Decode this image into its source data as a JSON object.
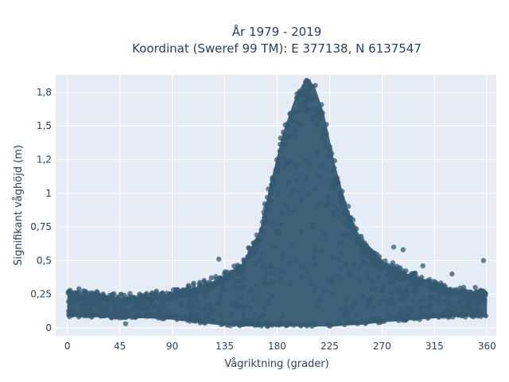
{
  "chart_data": {
    "type": "scatter",
    "title": "År 1979 - 2019",
    "subtitle": "Koordinat (Sweref 99 TM): E 377138, N 6137547",
    "xlabel": "Vågriktning (grader)",
    "ylabel": "Signifikant våghöjd (m)",
    "xlim": [
      -10,
      368
    ],
    "ylim": [
      -0.06,
      1.88
    ],
    "x_ticks": [
      0,
      45,
      90,
      135,
      180,
      225,
      270,
      315,
      360
    ],
    "x_tick_labels": [
      "0",
      "45",
      "90",
      "135",
      "180",
      "225",
      "270",
      "315",
      "360"
    ],
    "y_ticks": [
      0,
      0.25,
      0.5,
      0.75,
      1,
      1.25,
      1.5,
      1.75
    ],
    "y_tick_labels": [
      "0",
      "0,25",
      "0,5",
      "0,75",
      "1",
      "1,2",
      "1,5",
      "1,8"
    ],
    "grid": true,
    "marker_color": "#345a70",
    "plot_background": "#e5ecf6",
    "envelope": {
      "x": [
        0,
        20,
        45,
        70,
        90,
        110,
        130,
        150,
        165,
        175,
        185,
        195,
        205,
        212,
        220,
        230,
        240,
        250,
        260,
        270,
        285,
        300,
        315,
        330,
        345,
        360
      ],
      "upper": [
        0.25,
        0.24,
        0.22,
        0.23,
        0.26,
        0.3,
        0.36,
        0.48,
        0.72,
        1.1,
        1.45,
        1.7,
        1.86,
        1.8,
        1.6,
        1.2,
        0.9,
        0.68,
        0.6,
        0.5,
        0.42,
        0.38,
        0.33,
        0.28,
        0.25,
        0.25
      ],
      "lower": [
        0.08,
        0.08,
        0.07,
        0.07,
        0.06,
        0.04,
        0.02,
        0.01,
        0.01,
        0.01,
        0.01,
        0.01,
        0.01,
        0.01,
        0.01,
        0.01,
        0.02,
        0.02,
        0.03,
        0.04,
        0.05,
        0.06,
        0.07,
        0.08,
        0.08,
        0.08
      ]
    },
    "outliers": [
      {
        "x": 357,
        "y": 0.5
      },
      {
        "x": 130,
        "y": 0.51
      },
      {
        "x": 10,
        "y": 0.29
      },
      {
        "x": 80,
        "y": 0.25
      },
      {
        "x": 350,
        "y": 0.3
      },
      {
        "x": 50,
        "y": 0.03
      },
      {
        "x": 280,
        "y": 0.6
      },
      {
        "x": 288,
        "y": 0.58
      },
      {
        "x": 330,
        "y": 0.4
      },
      {
        "x": 340,
        "y": 0.3
      },
      {
        "x": 20,
        "y": 0.1
      },
      {
        "x": 305,
        "y": 0.46
      }
    ]
  }
}
